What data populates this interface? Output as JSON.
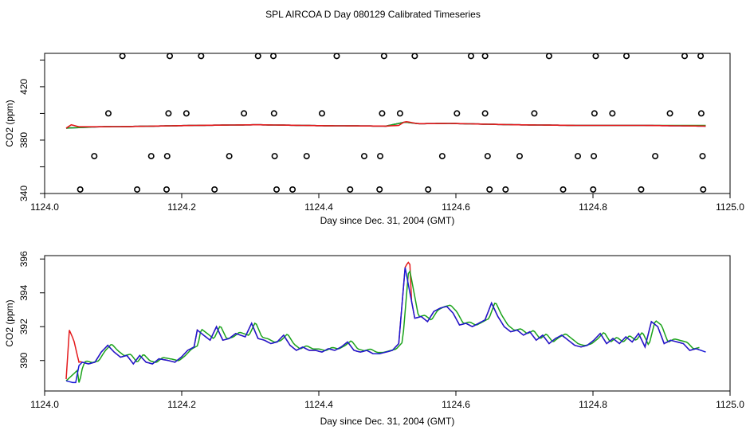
{
  "title": "SPL AIRCOA D  Day 080129  Calibrated Timeseries",
  "colors": {
    "red": "#e41a1c",
    "green": "#1aa31a",
    "blue": "#1a1ad6",
    "frame": "#000000"
  },
  "chart_data": [
    {
      "type": "scatter+line",
      "xlabel": "Day since Dec. 31, 2004 (GMT)",
      "ylabel": "CO2 (ppm)",
      "xlim": [
        1124.0,
        1125.0
      ],
      "ylim": [
        340,
        445
      ],
      "xticks": [
        1124.0,
        1124.2,
        1124.4,
        1124.6,
        1124.8,
        1125.0
      ],
      "xtick_labels": [
        "1124.0",
        "1124.2",
        "1124.4",
        "1124.6",
        "1124.8",
        "1125.0"
      ],
      "yticks": [
        340,
        380,
        420
      ],
      "ytick_labels": [
        "340",
        "380",
        "420"
      ],
      "yticks_minor": [
        360,
        400,
        440
      ],
      "calibration_points": [
        {
          "x": 1124.088,
          "y": 443
        },
        {
          "x": 1124.162,
          "y": 443
        },
        {
          "x": 1124.211,
          "y": 443
        },
        {
          "x": 1124.3,
          "y": 443
        },
        {
          "x": 1124.324,
          "y": 443
        },
        {
          "x": 1124.423,
          "y": 443
        },
        {
          "x": 1124.497,
          "y": 443
        },
        {
          "x": 1124.545,
          "y": 443
        },
        {
          "x": 1124.633,
          "y": 443
        },
        {
          "x": 1124.655,
          "y": 443
        },
        {
          "x": 1124.755,
          "y": 443
        },
        {
          "x": 1124.828,
          "y": 443
        },
        {
          "x": 1124.876,
          "y": 443
        },
        {
          "x": 1124.967,
          "y": 443
        },
        {
          "x": 1124.992,
          "y": 443
        },
        {
          "x": 1124.066,
          "y": 400
        },
        {
          "x": 1124.16,
          "y": 400
        },
        {
          "x": 1124.188,
          "y": 400
        },
        {
          "x": 1124.278,
          "y": 400
        },
        {
          "x": 1124.325,
          "y": 400
        },
        {
          "x": 1124.4,
          "y": 400
        },
        {
          "x": 1124.494,
          "y": 400
        },
        {
          "x": 1124.522,
          "y": 400
        },
        {
          "x": 1124.611,
          "y": 400
        },
        {
          "x": 1124.655,
          "y": 400
        },
        {
          "x": 1124.732,
          "y": 400
        },
        {
          "x": 1124.826,
          "y": 400
        },
        {
          "x": 1124.854,
          "y": 400
        },
        {
          "x": 1124.944,
          "y": 400
        },
        {
          "x": 1124.993,
          "y": 400
        },
        {
          "x": 1124.044,
          "y": 368
        },
        {
          "x": 1124.133,
          "y": 368
        },
        {
          "x": 1124.158,
          "y": 368
        },
        {
          "x": 1124.255,
          "y": 368
        },
        {
          "x": 1124.326,
          "y": 368
        },
        {
          "x": 1124.376,
          "y": 368
        },
        {
          "x": 1124.466,
          "y": 368
        },
        {
          "x": 1124.491,
          "y": 368
        },
        {
          "x": 1124.588,
          "y": 368
        },
        {
          "x": 1124.659,
          "y": 368
        },
        {
          "x": 1124.709,
          "y": 368
        },
        {
          "x": 1124.8,
          "y": 368
        },
        {
          "x": 1124.825,
          "y": 368
        },
        {
          "x": 1124.921,
          "y": 368
        },
        {
          "x": 1124.995,
          "y": 368
        },
        {
          "x": 1124.022,
          "y": 343
        },
        {
          "x": 1124.111,
          "y": 343
        },
        {
          "x": 1124.157,
          "y": 343
        },
        {
          "x": 1124.232,
          "y": 343
        },
        {
          "x": 1124.329,
          "y": 343
        },
        {
          "x": 1124.354,
          "y": 343
        },
        {
          "x": 1124.444,
          "y": 343
        },
        {
          "x": 1124.49,
          "y": 343
        },
        {
          "x": 1124.566,
          "y": 343
        },
        {
          "x": 1124.662,
          "y": 343
        },
        {
          "x": 1124.687,
          "y": 343
        },
        {
          "x": 1124.777,
          "y": 343
        },
        {
          "x": 1124.824,
          "y": 343
        },
        {
          "x": 1124.899,
          "y": 343
        },
        {
          "x": 1124.996,
          "y": 343
        }
      ],
      "series": [
        {
          "name": "red",
          "color": "red",
          "x": [
            1124.0,
            1124.008,
            1124.02,
            1124.05,
            1124.1,
            1124.2,
            1124.3,
            1124.4,
            1124.5,
            1124.52,
            1124.53,
            1124.55,
            1124.6,
            1124.65,
            1124.7,
            1124.8,
            1124.9,
            1125.0
          ],
          "y": [
            389,
            391.5,
            390,
            390,
            390.2,
            391,
            391.5,
            390.8,
            390.5,
            391,
            394,
            392.3,
            392.5,
            392,
            391.5,
            391,
            391,
            390.5
          ]
        },
        {
          "name": "green",
          "color": "green",
          "x": [
            1124.0,
            1124.05,
            1124.1,
            1124.2,
            1124.3,
            1124.4,
            1124.5,
            1124.53,
            1124.55,
            1124.6,
            1124.65,
            1124.7,
            1124.8,
            1124.9,
            1124.99
          ],
          "y": [
            389,
            390,
            390.2,
            391,
            391.5,
            390.8,
            390.5,
            393.5,
            392.3,
            392.5,
            392,
            391.5,
            391,
            391,
            391
          ]
        },
        {
          "name": "blue",
          "color": "blue",
          "x": [
            1124.0,
            1124.05,
            1124.1,
            1124.2,
            1124.3,
            1124.4,
            1124.5,
            1124.53,
            1124.55,
            1124.6,
            1124.65,
            1124.7,
            1124.8,
            1124.9,
            1125.0
          ],
          "y": [
            389,
            390,
            390.2,
            391,
            391.5,
            390.8,
            390.5,
            393.5,
            392.3,
            392.5,
            392,
            391.5,
            391,
            391,
            390.5
          ]
        }
      ]
    },
    {
      "type": "line",
      "xlabel": "Day since Dec. 31, 2004 (GMT)",
      "ylabel": "CO2 (ppm)",
      "xlim": [
        1124.0,
        1125.0
      ],
      "ylim": [
        388.2,
        396.2
      ],
      "xticks": [
        1124.0,
        1124.2,
        1124.4,
        1124.6,
        1124.8,
        1125.0
      ],
      "xtick_labels": [
        "1124.0",
        "1124.2",
        "1124.4",
        "1124.6",
        "1124.8",
        "1125.0"
      ],
      "yticks": [
        390,
        392,
        394,
        396
      ],
      "ytick_labels": [
        "390",
        "392",
        "394",
        "396"
      ],
      "base": {
        "x": [
          1124.0,
          1124.01,
          1124.015,
          1124.02,
          1124.025,
          1124.035,
          1124.045,
          1124.055,
          1124.065,
          1124.075,
          1124.085,
          1124.095,
          1124.105,
          1124.115,
          1124.125,
          1124.135,
          1124.145,
          1124.16,
          1124.17,
          1124.18,
          1124.19,
          1124.2,
          1124.205,
          1124.215,
          1124.225,
          1124.235,
          1124.245,
          1124.255,
          1124.265,
          1124.28,
          1124.29,
          1124.3,
          1124.31,
          1124.32,
          1124.33,
          1124.34,
          1124.35,
          1124.36,
          1124.37,
          1124.38,
          1124.39,
          1124.4,
          1124.41,
          1124.42,
          1124.43,
          1124.44,
          1124.45,
          1124.46,
          1124.47,
          1124.48,
          1124.49,
          1124.5,
          1124.51,
          1124.52,
          1124.53,
          1124.535,
          1124.545,
          1124.555,
          1124.565,
          1124.575,
          1124.585,
          1124.595,
          1124.605,
          1124.615,
          1124.625,
          1124.635,
          1124.645,
          1124.655,
          1124.665,
          1124.675,
          1124.685,
          1124.695,
          1124.705,
          1124.715,
          1124.725,
          1124.735,
          1124.745,
          1124.755,
          1124.765,
          1124.775,
          1124.785,
          1124.795,
          1124.805,
          1124.815,
          1124.825,
          1124.835,
          1124.845,
          1124.855,
          1124.865,
          1124.875,
          1124.885,
          1124.895,
          1124.905,
          1124.915,
          1124.925,
          1124.935,
          1124.945,
          1124.955,
          1124.965,
          1124.975,
          1124.985,
          1125.0
        ],
        "y": [
          388.8,
          388.7,
          388.7,
          389.7,
          389.9,
          389.8,
          389.9,
          390.5,
          390.9,
          390.5,
          390.2,
          390.3,
          389.8,
          390.3,
          389.9,
          389.8,
          390.1,
          390.0,
          389.9,
          390.2,
          390.6,
          390.8,
          391.8,
          391.5,
          391.2,
          392.0,
          391.2,
          391.3,
          391.6,
          391.4,
          392.2,
          391.3,
          391.2,
          391.0,
          391.1,
          391.5,
          390.9,
          390.6,
          390.8,
          390.6,
          390.6,
          390.5,
          390.7,
          390.6,
          390.8,
          391.1,
          390.6,
          390.5,
          390.6,
          390.4,
          390.4,
          390.5,
          390.6,
          391.0,
          395.5,
          394.5,
          392.5,
          392.6,
          392.3,
          392.9,
          393.1,
          393.2,
          392.8,
          392.1,
          392.2,
          392.0,
          392.2,
          392.4,
          393.4,
          392.6,
          392.0,
          391.7,
          391.8,
          391.5,
          391.7,
          391.2,
          391.5,
          391.0,
          391.3,
          391.5,
          391.2,
          390.9,
          390.8,
          390.9,
          391.2,
          391.6,
          391.0,
          391.3,
          391.0,
          391.4,
          391.1,
          391.6,
          390.8,
          392.3,
          392.0,
          391.0,
          391.2,
          391.1,
          391.0,
          390.6,
          390.7,
          390.5
        ]
      },
      "series": [
        {
          "name": "red",
          "color": "red",
          "x_start": 1124.0,
          "x_end": 1124.99,
          "x_lag": 0.0,
          "y_offset": 0.0,
          "overrides": [
            {
              "x": 1124.0,
              "y": 388.9
            },
            {
              "x": 1124.005,
              "y": 391.8
            },
            {
              "x": 1124.012,
              "y": 391.2
            },
            {
              "x": 1124.02,
              "y": 389.9
            },
            {
              "x": 1124.535,
              "y": 395.8
            }
          ]
        },
        {
          "name": "green",
          "color": "green",
          "x_start": 1124.0,
          "x_end": 1124.99,
          "x_lag": 0.006,
          "y_offset": 0.08,
          "overrides": [
            {
              "x": 1124.0,
              "y": 388.8
            },
            {
              "x": 1124.02,
              "y": 389.5
            }
          ]
        },
        {
          "name": "blue",
          "color": "blue",
          "x_start": 1124.0,
          "x_end": 1125.0,
          "x_lag": 0.0,
          "y_offset": 0.0,
          "overrides": []
        }
      ]
    }
  ]
}
